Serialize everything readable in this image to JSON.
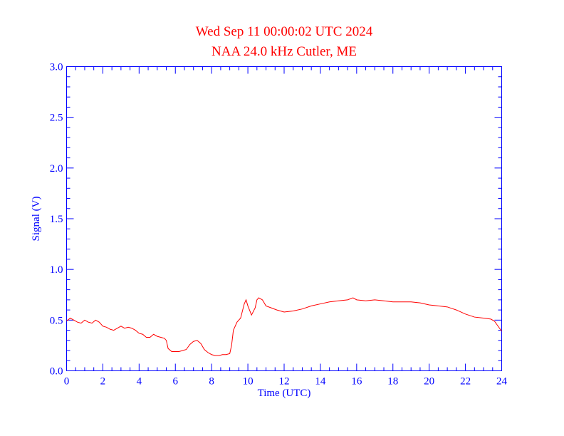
{
  "colors": {
    "title": "#ff0000",
    "axis": "#0000ff",
    "series": "#ff0000",
    "background": "#ffffff"
  },
  "chart_data": {
    "type": "line",
    "title": "Wed Sep 11 00:00:02 UTC 2024",
    "subtitle": "NAA 24.0 kHz Cutler, ME",
    "xlabel": "Time (UTC)",
    "ylabel": "Signal (V)",
    "xlim": [
      0,
      24
    ],
    "ylim": [
      0,
      3.0
    ],
    "xticks": [
      0,
      2,
      4,
      6,
      8,
      10,
      12,
      14,
      16,
      18,
      20,
      22,
      24
    ],
    "xtick_labels": [
      "0",
      "2",
      "4",
      "6",
      "8",
      "10",
      "12",
      "14",
      "16",
      "18",
      "20",
      "22",
      "24"
    ],
    "yticks": [
      0,
      0.5,
      1.0,
      1.5,
      2.0,
      2.5,
      3.0
    ],
    "ytick_labels": [
      "0.0",
      "0.5",
      "1.0",
      "1.5",
      "2.0",
      "2.5",
      "3.0"
    ],
    "grid": false,
    "series": [
      {
        "x": [
          0,
          0.2,
          0.4,
          0.6,
          0.8,
          1.0,
          1.2,
          1.4,
          1.6,
          1.8,
          2.0,
          2.2,
          2.4,
          2.6,
          2.8,
          3.0,
          3.2,
          3.4,
          3.6,
          3.8,
          4.0,
          4.2,
          4.4,
          4.6,
          4.8,
          5.0,
          5.2,
          5.4,
          5.5,
          5.6,
          5.8,
          6.0,
          6.2,
          6.4,
          6.6,
          6.8,
          7.0,
          7.2,
          7.4,
          7.6,
          7.8,
          8.0,
          8.2,
          8.4,
          8.6,
          8.8,
          9.0,
          9.1,
          9.2,
          9.4,
          9.6,
          9.8,
          9.9,
          10.0,
          10.2,
          10.4,
          10.5,
          10.6,
          10.8,
          11.0,
          11.3,
          11.6,
          12.0,
          12.5,
          13.0,
          13.5,
          14.0,
          14.5,
          15.0,
          15.5,
          15.8,
          16.0,
          16.5,
          17.0,
          17.5,
          18.0,
          18.5,
          19.0,
          19.5,
          20.0,
          20.5,
          21.0,
          21.5,
          22.0,
          22.5,
          23.0,
          23.4,
          23.6,
          23.8,
          24.0
        ],
        "y": [
          0.49,
          0.52,
          0.5,
          0.48,
          0.47,
          0.5,
          0.48,
          0.47,
          0.5,
          0.48,
          0.44,
          0.43,
          0.41,
          0.4,
          0.42,
          0.44,
          0.42,
          0.43,
          0.42,
          0.4,
          0.37,
          0.36,
          0.33,
          0.33,
          0.36,
          0.34,
          0.33,
          0.32,
          0.3,
          0.22,
          0.19,
          0.19,
          0.19,
          0.2,
          0.21,
          0.26,
          0.29,
          0.3,
          0.27,
          0.21,
          0.18,
          0.16,
          0.15,
          0.15,
          0.16,
          0.16,
          0.17,
          0.25,
          0.4,
          0.48,
          0.52,
          0.66,
          0.7,
          0.64,
          0.55,
          0.62,
          0.7,
          0.72,
          0.7,
          0.64,
          0.62,
          0.6,
          0.58,
          0.59,
          0.61,
          0.64,
          0.66,
          0.68,
          0.69,
          0.7,
          0.72,
          0.7,
          0.69,
          0.7,
          0.69,
          0.68,
          0.68,
          0.68,
          0.67,
          0.65,
          0.64,
          0.63,
          0.6,
          0.56,
          0.53,
          0.52,
          0.51,
          0.49,
          0.44,
          0.39
        ]
      }
    ]
  }
}
